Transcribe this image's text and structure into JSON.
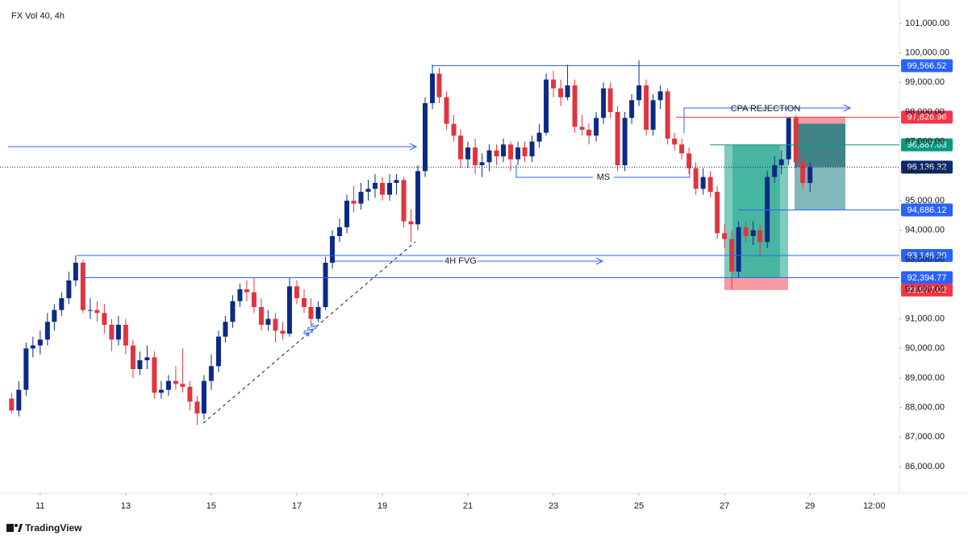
{
  "chart_data": {
    "type": "candlestick",
    "title": "FX Vol 40, 4h",
    "up_color": "#0c2a86",
    "down_color": "#e0353f",
    "grid": false,
    "xlim": [
      10.06,
      31.09
    ],
    "ylim": [
      85100,
      101790
    ],
    "xticks": [
      11,
      13,
      15,
      17,
      19,
      21,
      23,
      25,
      27,
      29,
      {
        "value": 30.5,
        "label": "12:00"
      }
    ],
    "yticks": [
      {
        "value": 86000,
        "label": "86,000.00"
      },
      {
        "value": 87000,
        "label": "87,000.00"
      },
      {
        "value": 88000,
        "label": "88,000.00"
      },
      {
        "value": 89000,
        "label": "89,000.00"
      },
      {
        "value": 90000,
        "label": "90,000.00"
      },
      {
        "value": 91000,
        "label": "91,000.00"
      },
      {
        "value": 92000,
        "label": "92,000.00"
      },
      {
        "value": 93000,
        "label": "93,000.00"
      },
      {
        "value": 94000,
        "label": "94,000.00"
      },
      {
        "value": 95000,
        "label": "95,000.00"
      },
      {
        "value": 96000,
        "label": "96,000.00"
      },
      {
        "value": 97000,
        "label": "97,000.00"
      },
      {
        "value": 98000,
        "label": "98,000.00"
      },
      {
        "value": 99000,
        "label": "99,000.00"
      },
      {
        "value": 100000,
        "label": "100,000.00"
      },
      {
        "value": 101000,
        "label": "101,000.00"
      }
    ],
    "x": [
      10.33,
      10.5,
      10.67,
      10.83,
      11,
      11.17,
      11.33,
      11.5,
      11.67,
      11.83,
      12,
      12.17,
      12.33,
      12.5,
      12.67,
      12.83,
      13,
      13.17,
      13.33,
      13.5,
      13.67,
      13.83,
      14,
      14.17,
      14.33,
      14.5,
      14.67,
      14.83,
      15,
      15.17,
      15.33,
      15.5,
      15.67,
      15.83,
      16,
      16.17,
      16.33,
      16.5,
      16.67,
      16.83,
      17,
      17.17,
      17.33,
      17.5,
      17.67,
      17.83,
      18,
      18.17,
      18.33,
      18.5,
      18.67,
      18.83,
      19,
      19.17,
      19.33,
      19.5,
      19.67,
      19.83,
      20,
      20.17,
      20.33,
      20.5,
      20.67,
      20.83,
      21,
      21.17,
      21.33,
      21.5,
      21.67,
      21.83,
      22,
      22.17,
      22.33,
      22.5,
      22.67,
      22.83,
      23,
      23.17,
      23.33,
      23.5,
      23.67,
      23.83,
      24,
      24.17,
      24.33,
      24.5,
      24.67,
      24.83,
      25,
      25.17,
      25.33,
      25.5,
      25.67,
      25.83,
      26,
      26.17,
      26.33,
      26.5,
      26.67,
      26.83,
      27,
      27.17,
      27.33,
      27.5,
      27.67,
      27.83,
      28,
      28.17,
      28.33,
      28.5,
      28.67,
      28.83,
      29
    ],
    "ohlc": [
      [
        88300,
        88500,
        87800,
        87900
      ],
      [
        87900,
        88900,
        87700,
        88600
      ],
      [
        88600,
        90200,
        88400,
        90000
      ],
      [
        90000,
        90400,
        89700,
        90100
      ],
      [
        90100,
        90600,
        89800,
        90300
      ],
      [
        90300,
        91200,
        90100,
        90900
      ],
      [
        90900,
        91500,
        90600,
        91300
      ],
      [
        91300,
        91900,
        91100,
        91700
      ],
      [
        91700,
        92600,
        91500,
        92300
      ],
      [
        92300,
        93150,
        92100,
        92900
      ],
      [
        92900,
        93000,
        91200,
        91300
      ],
      [
        91300,
        91700,
        91000,
        91300
      ],
      [
        91300,
        91600,
        90900,
        91200
      ],
      [
        91200,
        91500,
        90500,
        90800
      ],
      [
        90800,
        91000,
        89900,
        90300
      ],
      [
        90300,
        91100,
        90100,
        90800
      ],
      [
        90800,
        91000,
        89800,
        90100
      ],
      [
        90100,
        90300,
        89000,
        89300
      ],
      [
        89300,
        89900,
        89100,
        89600
      ],
      [
        89600,
        90100,
        89300,
        89700
      ],
      [
        89700,
        89900,
        88300,
        88500
      ],
      [
        88500,
        88900,
        88300,
        88600
      ],
      [
        88600,
        89100,
        88400,
        88900
      ],
      [
        88900,
        89400,
        88600,
        88800
      ],
      [
        88800,
        90000,
        88500,
        88700
      ],
      [
        88700,
        88900,
        87900,
        88200
      ],
      [
        88200,
        88400,
        87400,
        87800
      ],
      [
        87800,
        89100,
        87600,
        88900
      ],
      [
        88900,
        89800,
        88600,
        89400
      ],
      [
        89400,
        90600,
        89200,
        90400
      ],
      [
        90400,
        91100,
        90200,
        90900
      ],
      [
        90900,
        91800,
        90700,
        91600
      ],
      [
        91600,
        92200,
        91400,
        92000
      ],
      [
        92000,
        92300,
        91600,
        91900
      ],
      [
        91900,
        92400,
        91200,
        91400
      ],
      [
        91400,
        91700,
        90600,
        90800
      ],
      [
        90800,
        91300,
        90600,
        91000
      ],
      [
        91000,
        91200,
        90200,
        90600
      ],
      [
        90600,
        90900,
        90300,
        90500
      ],
      [
        90500,
        92400,
        90400,
        92100
      ],
      [
        92100,
        92300,
        91500,
        91700
      ],
      [
        91700,
        92000,
        91200,
        91400
      ],
      [
        91400,
        91700,
        90800,
        91000
      ],
      [
        91000,
        91600,
        90900,
        91400
      ],
      [
        91400,
        93100,
        91300,
        92900
      ],
      [
        92900,
        94000,
        92700,
        93800
      ],
      [
        93800,
        94400,
        93600,
        94100
      ],
      [
        94100,
        95200,
        93900,
        95000
      ],
      [
        95000,
        95500,
        94600,
        94900
      ],
      [
        94900,
        95600,
        94700,
        95300
      ],
      [
        95300,
        95700,
        95000,
        95400
      ],
      [
        95400,
        95900,
        95100,
        95600
      ],
      [
        95600,
        95800,
        95000,
        95200
      ],
      [
        95200,
        95900,
        95000,
        95600
      ],
      [
        95600,
        95900,
        95200,
        95700
      ],
      [
        95700,
        95800,
        94100,
        94300
      ],
      [
        94300,
        94700,
        93600,
        94200
      ],
      [
        94200,
        96200,
        94000,
        96000
      ],
      [
        96000,
        98500,
        95800,
        98300
      ],
      [
        98300,
        99600,
        98100,
        99300
      ],
      [
        99300,
        99500,
        98300,
        98500
      ],
      [
        98500,
        98700,
        97400,
        97600
      ],
      [
        97600,
        97900,
        97000,
        97200
      ],
      [
        97200,
        97400,
        96100,
        96400
      ],
      [
        96400,
        97000,
        96100,
        96800
      ],
      [
        96800,
        97100,
        95900,
        96200
      ],
      [
        96200,
        96600,
        95800,
        96300
      ],
      [
        96300,
        96900,
        96000,
        96700
      ],
      [
        96700,
        96900,
        96200,
        96500
      ],
      [
        96500,
        97100,
        96300,
        96900
      ],
      [
        96900,
        97000,
        96000,
        96400
      ],
      [
        96400,
        97000,
        96200,
        96800
      ],
      [
        96800,
        97000,
        96300,
        96500
      ],
      [
        96500,
        97200,
        96300,
        97000
      ],
      [
        97000,
        97600,
        96800,
        97300
      ],
      [
        97300,
        99300,
        97200,
        99100
      ],
      [
        99100,
        99400,
        98500,
        98800
      ],
      [
        98800,
        99100,
        98200,
        98500
      ],
      [
        98500,
        99600,
        98400,
        98900
      ],
      [
        98900,
        99100,
        97300,
        97500
      ],
      [
        97500,
        97900,
        97200,
        97400
      ],
      [
        97400,
        97600,
        96900,
        97200
      ],
      [
        97200,
        98000,
        97000,
        97800
      ],
      [
        97800,
        99000,
        97600,
        98800
      ],
      [
        98800,
        99000,
        97800,
        98000
      ],
      [
        98000,
        98200,
        96000,
        96200
      ],
      [
        96200,
        98000,
        96000,
        97800
      ],
      [
        97800,
        98600,
        97600,
        98400
      ],
      [
        98400,
        99750,
        98200,
        98900
      ],
      [
        98900,
        99100,
        97200,
        97400
      ],
      [
        97400,
        98600,
        97200,
        98400
      ],
      [
        98400,
        98900,
        98100,
        98700
      ],
      [
        98700,
        98800,
        96900,
        97100
      ],
      [
        97100,
        97300,
        96700,
        96900
      ],
      [
        96900,
        97100,
        96400,
        96600
      ],
      [
        96600,
        96800,
        95900,
        96100
      ],
      [
        96100,
        96300,
        95200,
        95400
      ],
      [
        95400,
        96100,
        95200,
        95800
      ],
      [
        95800,
        96000,
        95100,
        95300
      ],
      [
        95300,
        95500,
        93700,
        93900
      ],
      [
        93900,
        94200,
        93400,
        93700
      ],
      [
        93700,
        94000,
        92000,
        92600
      ],
      [
        92600,
        94300,
        92400,
        94100
      ],
      [
        94100,
        94300,
        93600,
        93800
      ],
      [
        93800,
        94300,
        93500,
        94000
      ],
      [
        94000,
        94200,
        93100,
        93600
      ],
      [
        93600,
        96000,
        93400,
        95800
      ],
      [
        95800,
        96500,
        95600,
        96200
      ],
      [
        96200,
        96700,
        95900,
        96400
      ],
      [
        96400,
        97830,
        96200,
        97800
      ],
      [
        97800,
        97900,
        96100,
        96300
      ],
      [
        96300,
        96500,
        95400,
        95600
      ],
      [
        95600,
        96300,
        95300,
        96136.32
      ]
    ],
    "levels": [
      {
        "value": 99566.52,
        "label": "99,566.52",
        "color": "#2962ff"
      },
      {
        "value": 97826.96,
        "label": "97,826.96",
        "color": "#f23645"
      },
      {
        "value": 96887.03,
        "label": "96,887.03",
        "color": "#089981"
      },
      {
        "value": 96136.32,
        "label": "96,136.32",
        "color": "#0c2a6e",
        "dotted": true
      },
      {
        "value": 94686.12,
        "label": "94,686.12",
        "color": "#2962ff"
      },
      {
        "value": 93146.2,
        "label": "93,146.20",
        "color": "#2962ff"
      },
      {
        "value": 92394.77,
        "label": "92,394.77",
        "color": "#2962ff"
      },
      {
        "value": 91977.02,
        "label": "91,977.02",
        "color": "#f23645"
      }
    ],
    "annotations": {
      "cpa": "CPA REJECTION",
      "ms": "MS",
      "fvg": "4H FVG",
      "liquidity": "$$$"
    }
  },
  "footer": {
    "brand": "TradingView"
  }
}
